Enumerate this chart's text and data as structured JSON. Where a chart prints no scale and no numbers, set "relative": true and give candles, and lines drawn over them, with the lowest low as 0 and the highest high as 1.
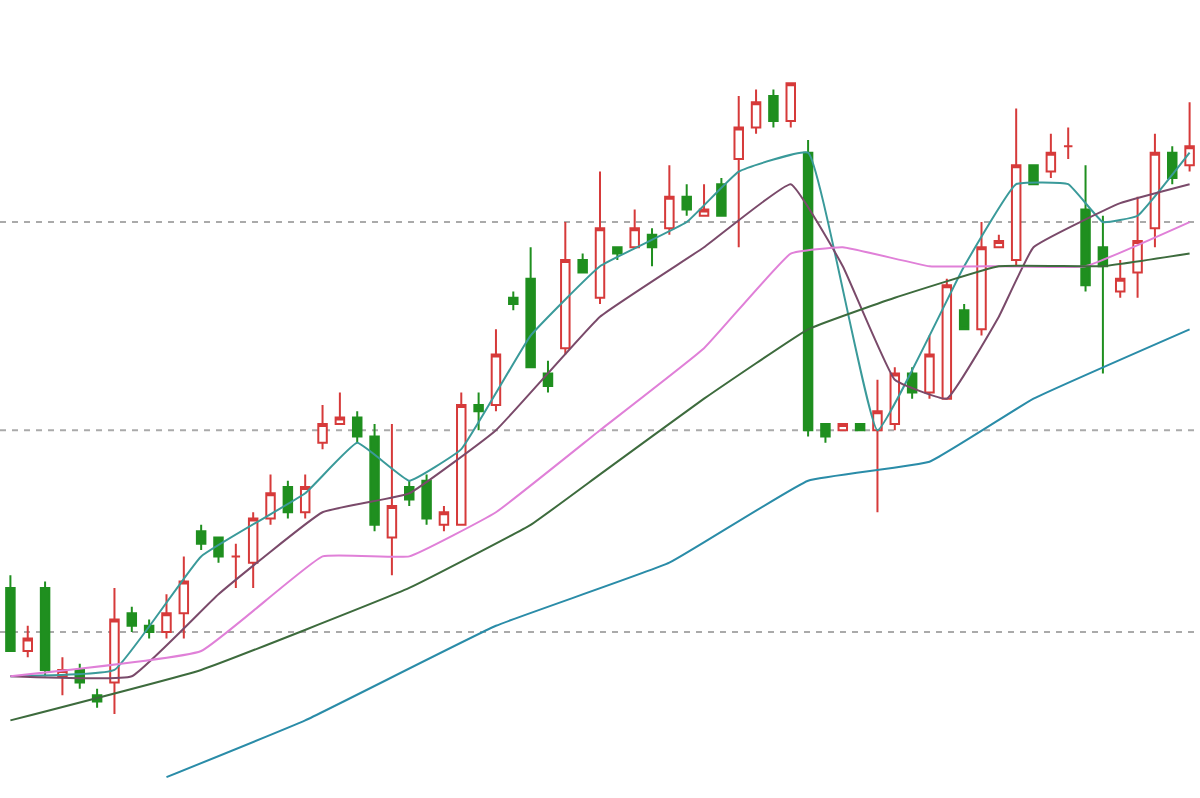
{
  "chart_data": {
    "type": "candlestick",
    "relative": true,
    "categories": [
      null,
      null,
      null,
      null,
      null,
      null,
      null,
      null,
      null,
      null,
      null,
      null,
      null,
      null,
      null,
      null,
      null,
      null,
      null,
      null,
      null,
      null,
      null,
      null,
      null,
      null,
      null,
      null,
      null,
      null,
      null,
      null,
      null,
      null,
      null,
      null,
      null,
      null,
      null,
      null,
      null,
      null,
      null,
      null,
      null,
      null,
      null,
      null,
      null,
      null,
      null,
      null,
      null,
      null,
      null,
      null,
      null,
      null,
      null,
      null,
      null,
      null,
      null,
      null,
      null,
      null,
      null,
      null,
      null
    ],
    "colors": [
      "#1f8f1f",
      "#d63a3a",
      "#1f8f1f",
      "#d63a3a",
      "#1f8f1f",
      "#1f8f1f",
      "#d63a3a",
      "#1f8f1f",
      "#1f8f1f",
      "#d63a3a",
      "#d63a3a",
      "#1f8f1f",
      "#1f8f1f",
      "#d63a3a",
      "#d63a3a",
      "#d63a3a",
      "#1f8f1f",
      "#d63a3a",
      "#d63a3a",
      "#d63a3a",
      "#1f8f1f",
      "#1f8f1f",
      "#d63a3a",
      "#1f8f1f",
      "#1f8f1f",
      "#d63a3a",
      "#d63a3a",
      "#1f8f1f",
      "#d63a3a",
      "#1f8f1f",
      "#1f8f1f",
      "#1f8f1f",
      "#d63a3a",
      "#1f8f1f",
      "#d63a3a",
      "#1f8f1f",
      "#d63a3a",
      "#1f8f1f",
      "#d63a3a",
      "#1f8f1f",
      "#d63a3a",
      "#1f8f1f",
      "#d63a3a",
      "#d63a3a",
      "#1f8f1f",
      "#d63a3a",
      "#1f8f1f",
      "#1f8f1f",
      "#d63a3a",
      "#1f8f1f",
      "#d63a3a",
      "#d63a3a",
      "#1f8f1f",
      "#d63a3a",
      "#d63a3a",
      "#1f8f1f",
      "#d63a3a",
      "#d63a3a",
      "#d63a3a",
      "#1f8f1f",
      "#d63a3a",
      "#d63a3a",
      "#1f8f1f",
      "#1f8f1f",
      "#d63a3a",
      "#d63a3a",
      "#d63a3a",
      "#1f8f1f",
      "#d63a3a"
    ],
    "ohlc": [
      [
        0.2,
        0.22,
        0.1,
        0.1
      ],
      [
        0.1,
        0.14,
        0.09,
        0.12
      ],
      [
        0.2,
        0.21,
        0.06,
        0.07
      ],
      [
        0.06,
        0.09,
        0.03,
        0.07
      ],
      [
        0.07,
        0.08,
        0.04,
        0.05
      ],
      [
        0.03,
        0.04,
        0.01,
        0.02
      ],
      [
        0.05,
        0.2,
        0.0,
        0.15
      ],
      [
        0.16,
        0.17,
        0.13,
        0.14
      ],
      [
        0.14,
        0.15,
        0.12,
        0.13
      ],
      [
        0.13,
        0.19,
        0.12,
        0.16
      ],
      [
        0.16,
        0.25,
        0.12,
        0.21
      ],
      [
        0.29,
        0.3,
        0.26,
        0.27
      ],
      [
        0.28,
        0.28,
        0.24,
        0.25
      ],
      [
        0.25,
        0.27,
        0.2,
        0.25
      ],
      [
        0.24,
        0.32,
        0.2,
        0.31
      ],
      [
        0.31,
        0.38,
        0.3,
        0.35
      ],
      [
        0.36,
        0.37,
        0.31,
        0.32
      ],
      [
        0.32,
        0.38,
        0.31,
        0.36
      ],
      [
        0.43,
        0.49,
        0.42,
        0.46
      ],
      [
        0.46,
        0.51,
        0.46,
        0.47
      ],
      [
        0.47,
        0.48,
        0.43,
        0.44
      ],
      [
        0.44,
        0.46,
        0.29,
        0.3
      ],
      [
        0.28,
        0.46,
        0.22,
        0.33
      ],
      [
        0.36,
        0.37,
        0.33,
        0.34
      ],
      [
        0.37,
        0.38,
        0.3,
        0.31
      ],
      [
        0.3,
        0.33,
        0.29,
        0.32
      ],
      [
        0.3,
        0.51,
        0.3,
        0.49
      ],
      [
        0.49,
        0.51,
        0.45,
        0.48
      ],
      [
        0.49,
        0.61,
        0.48,
        0.57
      ],
      [
        0.66,
        0.67,
        0.64,
        0.65
      ],
      [
        0.69,
        0.74,
        0.55,
        0.55
      ],
      [
        0.54,
        0.56,
        0.51,
        0.52
      ],
      [
        0.58,
        0.78,
        0.57,
        0.72
      ],
      [
        0.72,
        0.73,
        0.7,
        0.7
      ],
      [
        0.66,
        0.86,
        0.65,
        0.77
      ],
      [
        0.74,
        0.74,
        0.72,
        0.73
      ],
      [
        0.74,
        0.8,
        0.74,
        0.77
      ],
      [
        0.76,
        0.77,
        0.71,
        0.74
      ],
      [
        0.77,
        0.87,
        0.76,
        0.82
      ],
      [
        0.82,
        0.84,
        0.79,
        0.8
      ],
      [
        0.79,
        0.84,
        0.79,
        0.8
      ],
      [
        0.84,
        0.85,
        0.79,
        0.79
      ],
      [
        0.88,
        0.98,
        0.74,
        0.93
      ],
      [
        0.93,
        0.99,
        0.92,
        0.97
      ],
      [
        0.98,
        0.99,
        0.93,
        0.94
      ],
      [
        0.94,
        1.0,
        0.93,
        1.0
      ],
      [
        0.89,
        0.91,
        0.44,
        0.45
      ],
      [
        0.46,
        0.46,
        0.43,
        0.44
      ],
      [
        0.45,
        0.46,
        0.45,
        0.46
      ],
      [
        0.46,
        0.46,
        0.45,
        0.45
      ],
      [
        0.45,
        0.53,
        0.32,
        0.48
      ],
      [
        0.46,
        0.55,
        0.45,
        0.54
      ],
      [
        0.54,
        0.55,
        0.5,
        0.51
      ],
      [
        0.51,
        0.6,
        0.5,
        0.57
      ],
      [
        0.5,
        0.69,
        0.5,
        0.68
      ],
      [
        0.64,
        0.65,
        0.61,
        0.61
      ],
      [
        0.61,
        0.78,
        0.6,
        0.74
      ],
      [
        0.74,
        0.76,
        0.74,
        0.75
      ],
      [
        0.72,
        0.96,
        0.71,
        0.87
      ],
      [
        0.87,
        0.87,
        0.84,
        0.84
      ],
      [
        0.86,
        0.92,
        0.85,
        0.89
      ],
      [
        0.9,
        0.93,
        0.88,
        0.9
      ],
      [
        0.8,
        0.87,
        0.67,
        0.68
      ],
      [
        0.74,
        0.79,
        0.54,
        0.71
      ],
      [
        0.67,
        0.72,
        0.66,
        0.69
      ],
      [
        0.7,
        0.82,
        0.66,
        0.75
      ],
      [
        0.77,
        0.92,
        0.74,
        0.89
      ],
      [
        0.89,
        0.9,
        0.84,
        0.85
      ],
      [
        0.87,
        0.97,
        0.86,
        0.9
      ]
    ],
    "series": [
      {
        "type": "line",
        "color": "#3a9a9a",
        "values": [
          0.06,
          null,
          null,
          null,
          null,
          null,
          0.07,
          null,
          null,
          null,
          null,
          0.25,
          null,
          null,
          null,
          null,
          null,
          0.35,
          null,
          null,
          0.43,
          null,
          null,
          0.37,
          null,
          null,
          0.42,
          null,
          null,
          null,
          0.6,
          null,
          null,
          null,
          0.71,
          null,
          null,
          null,
          null,
          0.78,
          null,
          null,
          0.86,
          null,
          null,
          null,
          0.89,
          null,
          null,
          null,
          0.45,
          null,
          null,
          null,
          null,
          0.71,
          null,
          null,
          0.84,
          null,
          null,
          0.84,
          null,
          0.78,
          null,
          0.79,
          null,
          null,
          0.89
        ]
      },
      {
        "type": "line",
        "color": "#7a4a6a",
        "values": [
          0.06,
          null,
          null,
          null,
          null,
          null,
          null,
          0.06,
          null,
          null,
          null,
          null,
          0.19,
          null,
          null,
          null,
          null,
          null,
          0.32,
          null,
          null,
          null,
          null,
          0.35,
          null,
          null,
          null,
          null,
          0.45,
          null,
          null,
          null,
          null,
          null,
          0.63,
          null,
          null,
          null,
          null,
          null,
          0.74,
          null,
          null,
          null,
          null,
          0.84,
          null,
          null,
          0.71,
          null,
          null,
          0.53,
          null,
          null,
          0.5,
          null,
          null,
          0.63,
          null,
          0.74,
          null,
          null,
          null,
          null,
          0.81,
          null,
          null,
          null,
          0.84
        ]
      },
      {
        "type": "line",
        "color": "#e080d8",
        "values": [
          0.06,
          null,
          null,
          null,
          null,
          null,
          null,
          null,
          null,
          null,
          null,
          0.1,
          null,
          null,
          null,
          null,
          null,
          null,
          0.25,
          null,
          null,
          null,
          null,
          0.25,
          null,
          null,
          null,
          null,
          0.32,
          null,
          null,
          null,
          null,
          null,
          0.45,
          null,
          null,
          null,
          null,
          null,
          0.58,
          null,
          null,
          null,
          null,
          0.73,
          null,
          null,
          0.74,
          null,
          null,
          null,
          null,
          0.71,
          null,
          null,
          null,
          0.71,
          null,
          null,
          null,
          null,
          0.71,
          null,
          null,
          null,
          null,
          null,
          0.78
        ]
      },
      {
        "type": "line",
        "color": "#3d6b3d",
        "values": [
          -0.01,
          null,
          null,
          null,
          null,
          null,
          null,
          null,
          null,
          null,
          null,
          0.07,
          null,
          null,
          null,
          null,
          null,
          null,
          null,
          null,
          null,
          null,
          null,
          0.2,
          null,
          null,
          null,
          null,
          null,
          null,
          0.3,
          null,
          null,
          null,
          0.38,
          null,
          null,
          null,
          null,
          null,
          0.5,
          null,
          null,
          null,
          null,
          null,
          0.61,
          null,
          null,
          null,
          null,
          0.66,
          null,
          null,
          null,
          null,
          null,
          0.71,
          null,
          null,
          null,
          null,
          null,
          0.71,
          null,
          null,
          null,
          null,
          0.73
        ]
      },
      {
        "type": "line",
        "color": "#2a8ca8",
        "values": [
          null,
          null,
          null,
          null,
          null,
          null,
          null,
          null,
          null,
          -0.1,
          null,
          null,
          null,
          null,
          null,
          null,
          null,
          -0.01,
          null,
          null,
          null,
          null,
          null,
          null,
          null,
          null,
          null,
          null,
          0.14,
          null,
          null,
          null,
          null,
          null,
          null,
          null,
          null,
          null,
          0.24,
          null,
          null,
          null,
          null,
          null,
          null,
          null,
          0.37,
          null,
          null,
          null,
          null,
          null,
          null,
          0.4,
          null,
          null,
          null,
          null,
          null,
          0.5,
          null,
          null,
          null,
          null,
          null,
          null,
          null,
          null,
          0.61
        ]
      }
    ],
    "ref_lines": [
      {
        "axis": "y",
        "value": 0.78,
        "color": "#aaaaaa",
        "line_style": "dotted"
      },
      {
        "axis": "y",
        "value": 0.45,
        "color": "#aaaaaa",
        "line_style": "dotted"
      },
      {
        "axis": "y",
        "value": 0.13,
        "color": "#aaaaaa",
        "line_style": "dotted"
      }
    ]
  }
}
